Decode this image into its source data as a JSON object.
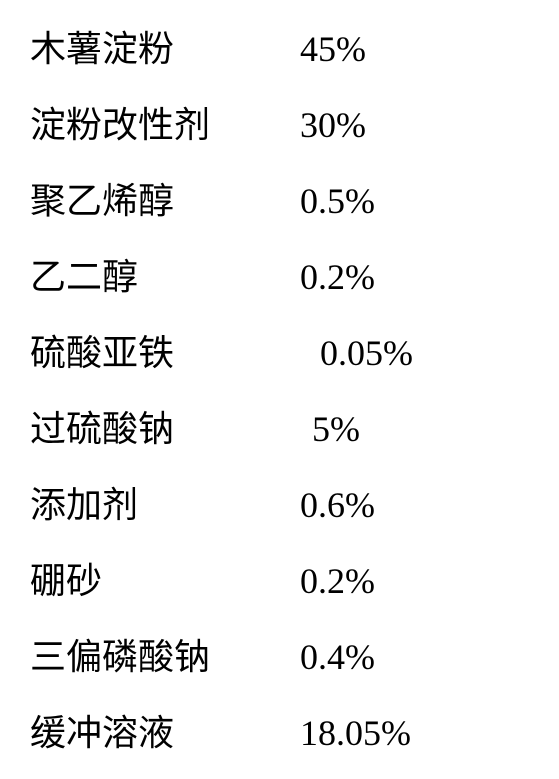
{
  "composition": {
    "rows": [
      {
        "ingredient": "木薯淀粉",
        "percentage": "45%",
        "offset": ""
      },
      {
        "ingredient": "淀粉改性剂",
        "percentage": "30%",
        "offset": ""
      },
      {
        "ingredient": "聚乙烯醇",
        "percentage": "0.5%",
        "offset": ""
      },
      {
        "ingredient": "乙二醇",
        "percentage": "0.2%",
        "offset": ""
      },
      {
        "ingredient": "硫酸亚铁",
        "percentage": "0.05%",
        "offset": "offset-1"
      },
      {
        "ingredient": "过硫酸钠",
        "percentage": "5%",
        "offset": "offset-2"
      },
      {
        "ingredient": "添加剂",
        "percentage": "0.6%",
        "offset": ""
      },
      {
        "ingredient": "硼砂",
        "percentage": "0.2%",
        "offset": ""
      },
      {
        "ingredient": "三偏磷酸钠",
        "percentage": "0.4%",
        "offset": ""
      },
      {
        "ingredient": "缓冲溶液",
        "percentage": "18.05%",
        "offset": ""
      }
    ]
  },
  "styling": {
    "font_family": "SimSun",
    "font_size": 36,
    "text_color": "#000000",
    "background_color": "#ffffff",
    "ingredient_column_width": 270,
    "row_spacing": 28
  }
}
